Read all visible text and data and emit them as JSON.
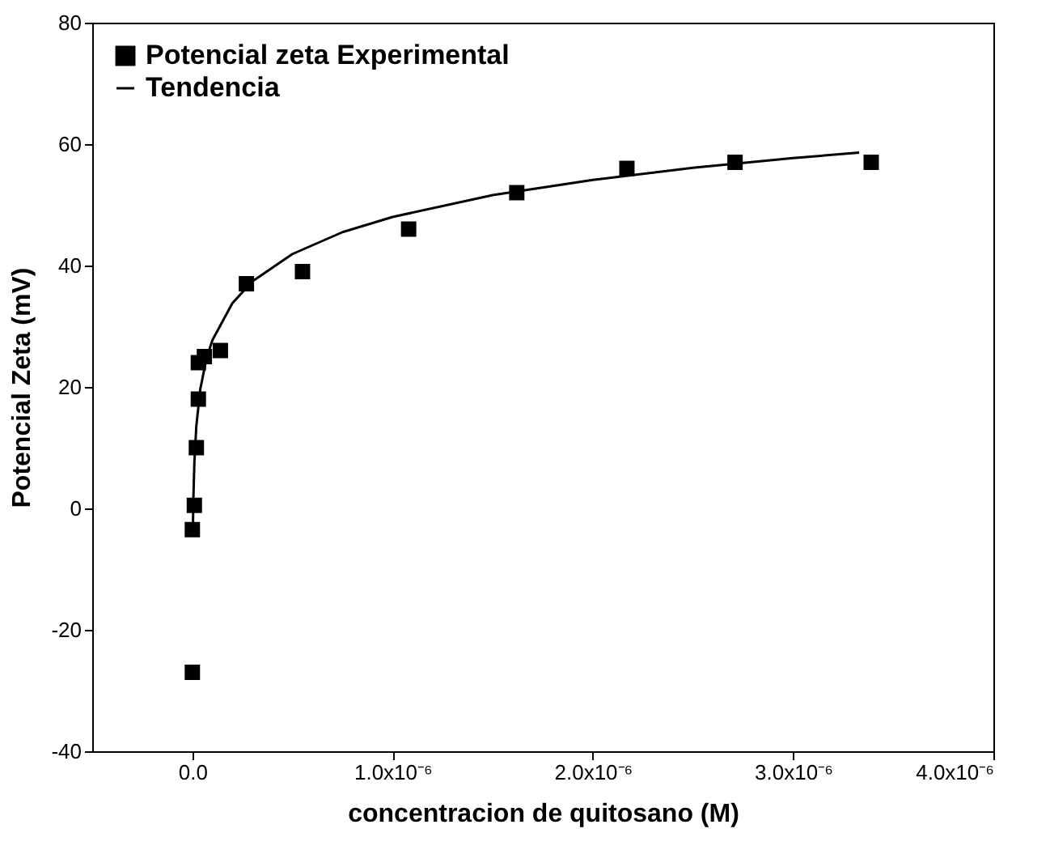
{
  "chart_data": {
    "type": "scatter",
    "xlabel": "concentracion de quitosano  (M)",
    "ylabel": "Potencial Zeta  (mV)",
    "xlim": [
      -5e-07,
      4e-06
    ],
    "xticks": [
      {
        "value": 0,
        "label": "0.0"
      },
      {
        "value": 1e-06,
        "label": "1.0x10⁻⁶"
      },
      {
        "value": 2e-06,
        "label": "2.0x10⁻⁶"
      },
      {
        "value": 3e-06,
        "label": "3.0x10⁻⁶"
      },
      {
        "value": 4e-06,
        "label": "4.0x10⁻⁶"
      }
    ],
    "ylim": [
      -40,
      80
    ],
    "yticks": [
      -40,
      -20,
      0,
      20,
      40,
      60,
      80
    ],
    "grid": false,
    "legend": "top left",
    "series": [
      {
        "name": "Potencial zeta Experimental",
        "marker": "square",
        "color": "#000000",
        "x": [
          0,
          0,
          1e-08,
          2e-08,
          3e-08,
          3e-08,
          6e-08,
          1.4e-07,
          2.7e-07,
          5.5e-07,
          1.08e-06,
          1.62e-06,
          2.17e-06,
          2.71e-06,
          3.39e-06
        ],
        "values": [
          -27,
          -3.5,
          0.5,
          10,
          18,
          24,
          25,
          26,
          37,
          39,
          46,
          52,
          56,
          57,
          57
        ]
      },
      {
        "name": "Tendencia",
        "type": "line",
        "line_style": "solid",
        "color": "#000000",
        "x": [
          3e-09,
          5e-09,
          1e-08,
          2e-08,
          4e-08,
          7e-08,
          1e-07,
          2e-07,
          3e-07,
          5e-07,
          7.5e-07,
          1e-06,
          1.5e-06,
          2e-06,
          2.5e-06,
          3e-06,
          3.33e-06
        ],
        "values": [
          -3,
          1.4,
          7.5,
          13.6,
          19.7,
          24.6,
          27.7,
          33.8,
          37.4,
          41.9,
          45.5,
          48.0,
          51.6,
          54.1,
          56.1,
          57.7,
          58.6
        ]
      }
    ]
  }
}
